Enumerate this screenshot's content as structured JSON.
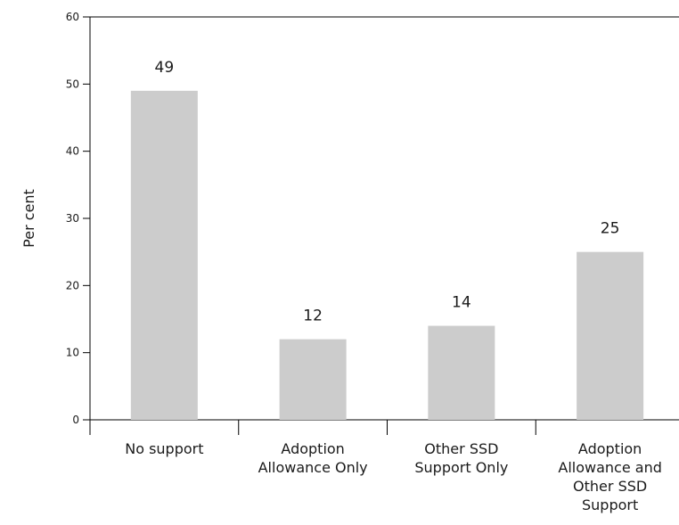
{
  "chart_data": {
    "type": "bar",
    "title": "",
    "xlabel": "",
    "ylabel": "Per cent",
    "ylim": [
      0,
      60
    ],
    "yticks": [
      0,
      10,
      20,
      30,
      40,
      50,
      60
    ],
    "grid": false,
    "categories": [
      [
        "No support"
      ],
      [
        "Adoption",
        "Allowance Only"
      ],
      [
        "Other SSD",
        "Support Only"
      ],
      [
        "Adoption",
        "Allowance and",
        "Other SSD",
        "Support"
      ]
    ],
    "values": [
      49,
      12,
      14,
      25
    ],
    "bar_color": "#cccccc"
  }
}
